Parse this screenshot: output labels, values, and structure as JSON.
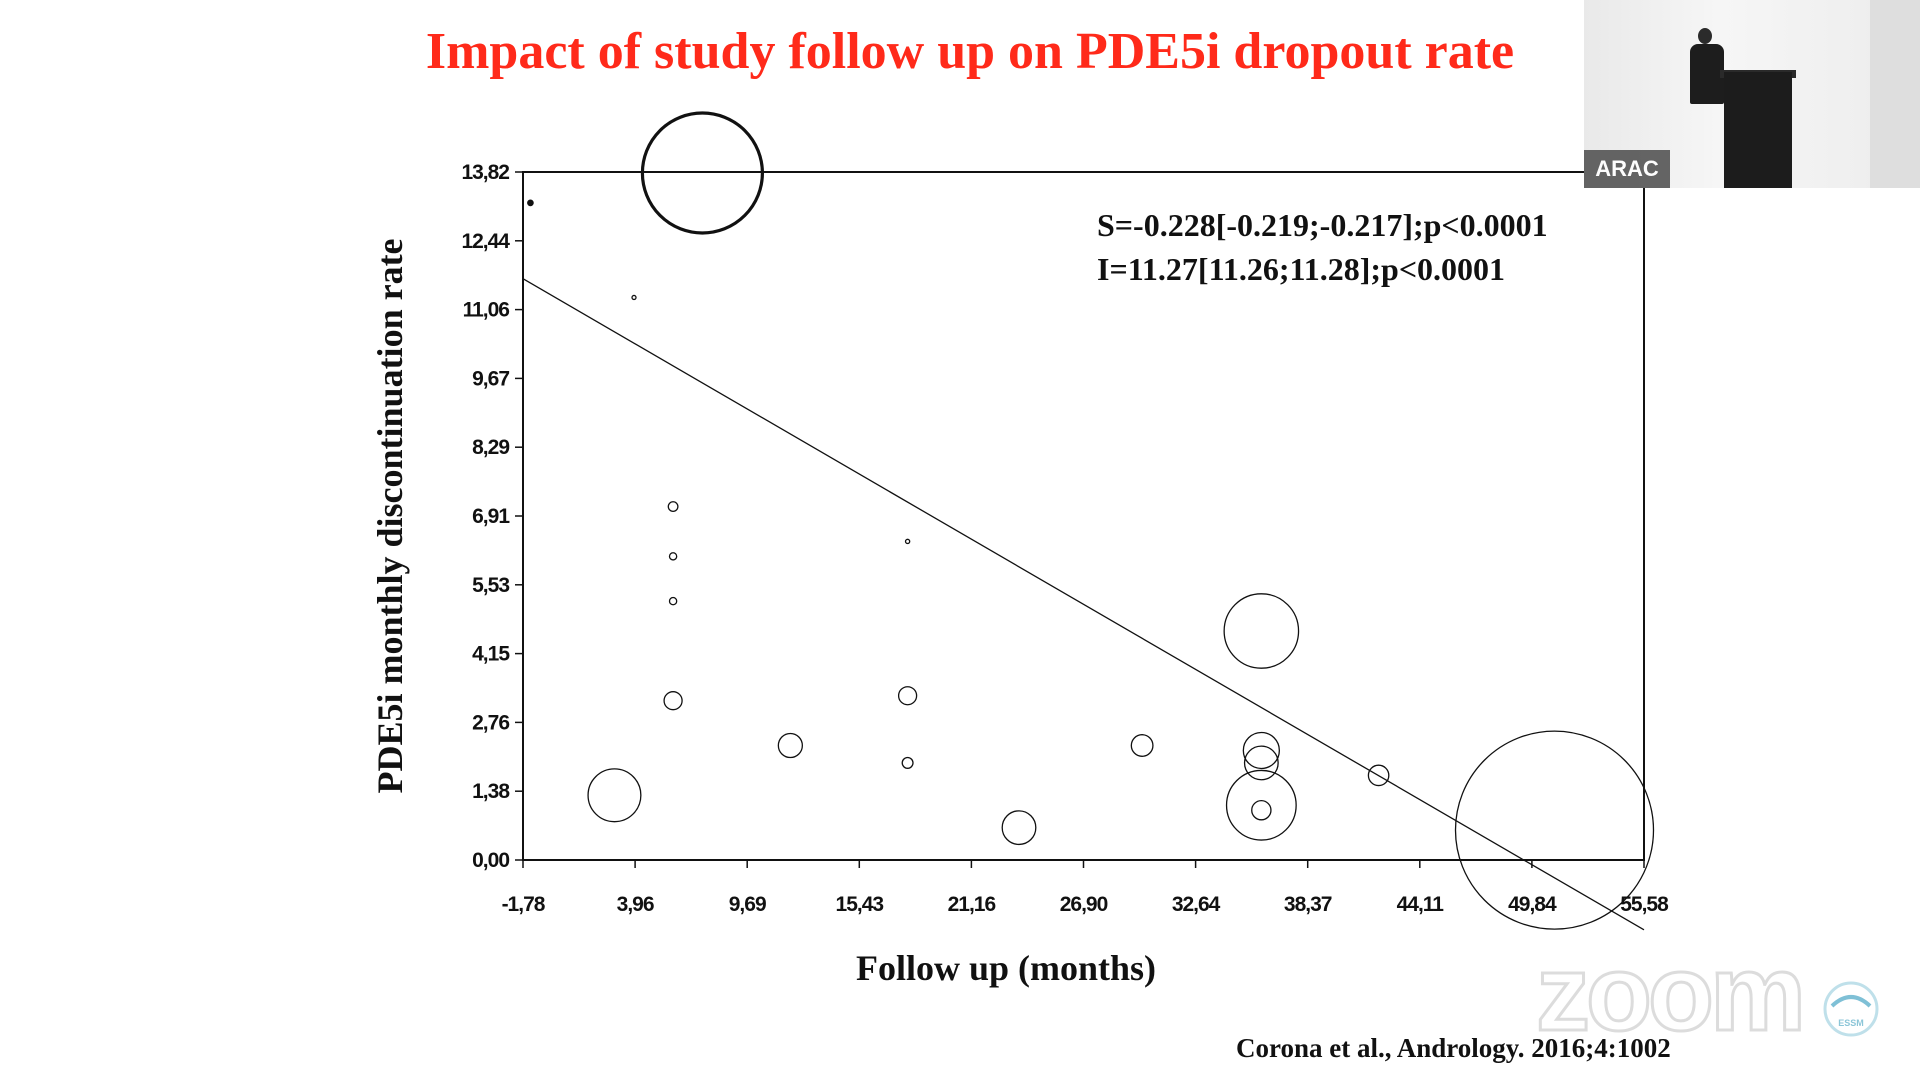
{
  "slide": {
    "title": "Impact of study follow up on PDE5i dropout rate",
    "citation": "Corona et al., Andrology. 2016;4:1002",
    "watermark": "zoom",
    "video_badge": "ARAC",
    "logo_text": "ESSM"
  },
  "chart_data": {
    "type": "scatter",
    "subtype": "bubble",
    "xlabel": "Follow up (months)",
    "ylabel": "PDE5i monthly discontinuation rate",
    "xlim": [
      -1.78,
      55.58
    ],
    "ylim": [
      0,
      13.82
    ],
    "xticks": [
      "-1,78",
      "3,96",
      "9,69",
      "15,43",
      "21,16",
      "26,90",
      "32,64",
      "38,37",
      "44,11",
      "49,84",
      "55,58"
    ],
    "yticks": [
      "0,00",
      "1,38",
      "2,76",
      "4,15",
      "5,53",
      "6,91",
      "8,29",
      "9,67",
      "11,06",
      "12,44",
      "13,82"
    ],
    "annotations": [
      "S=-0.228[-0.219;-0.217];p<0.0001",
      "I=11.27[11.26;11.28];p<0.0001"
    ],
    "regression": {
      "slope": -0.228,
      "intercept": 11.27
    },
    "points": [
      {
        "x": -1.4,
        "y": 13.2,
        "size": 0.45,
        "filled": true
      },
      {
        "x": 7.4,
        "y": 13.8,
        "size": 10.0,
        "bold": true
      },
      {
        "x": 3.9,
        "y": 11.3,
        "size": 0.25
      },
      {
        "x": 5.9,
        "y": 7.1,
        "size": 0.8
      },
      {
        "x": 5.9,
        "y": 6.1,
        "size": 0.6
      },
      {
        "x": 5.9,
        "y": 5.2,
        "size": 0.6
      },
      {
        "x": 5.9,
        "y": 3.2,
        "size": 1.5
      },
      {
        "x": 2.9,
        "y": 1.3,
        "size": 4.4
      },
      {
        "x": 11.9,
        "y": 2.3,
        "size": 2.0
      },
      {
        "x": 17.9,
        "y": 6.4,
        "size": 0.35
      },
      {
        "x": 17.9,
        "y": 3.3,
        "size": 1.5
      },
      {
        "x": 17.9,
        "y": 1.95,
        "size": 0.9
      },
      {
        "x": 23.6,
        "y": 0.65,
        "size": 2.8
      },
      {
        "x": 29.9,
        "y": 2.3,
        "size": 1.8
      },
      {
        "x": 36.0,
        "y": 4.6,
        "size": 6.2
      },
      {
        "x": 36.0,
        "y": 2.2,
        "size": 3.0
      },
      {
        "x": 36.0,
        "y": 1.95,
        "size": 2.8
      },
      {
        "x": 36.0,
        "y": 1.0,
        "size": 1.6
      },
      {
        "x": 36.0,
        "y": 1.1,
        "size": 5.8
      },
      {
        "x": 42.0,
        "y": 1.7,
        "size": 1.7
      },
      {
        "x": 51.0,
        "y": 0.6,
        "size": 16.5
      }
    ]
  }
}
